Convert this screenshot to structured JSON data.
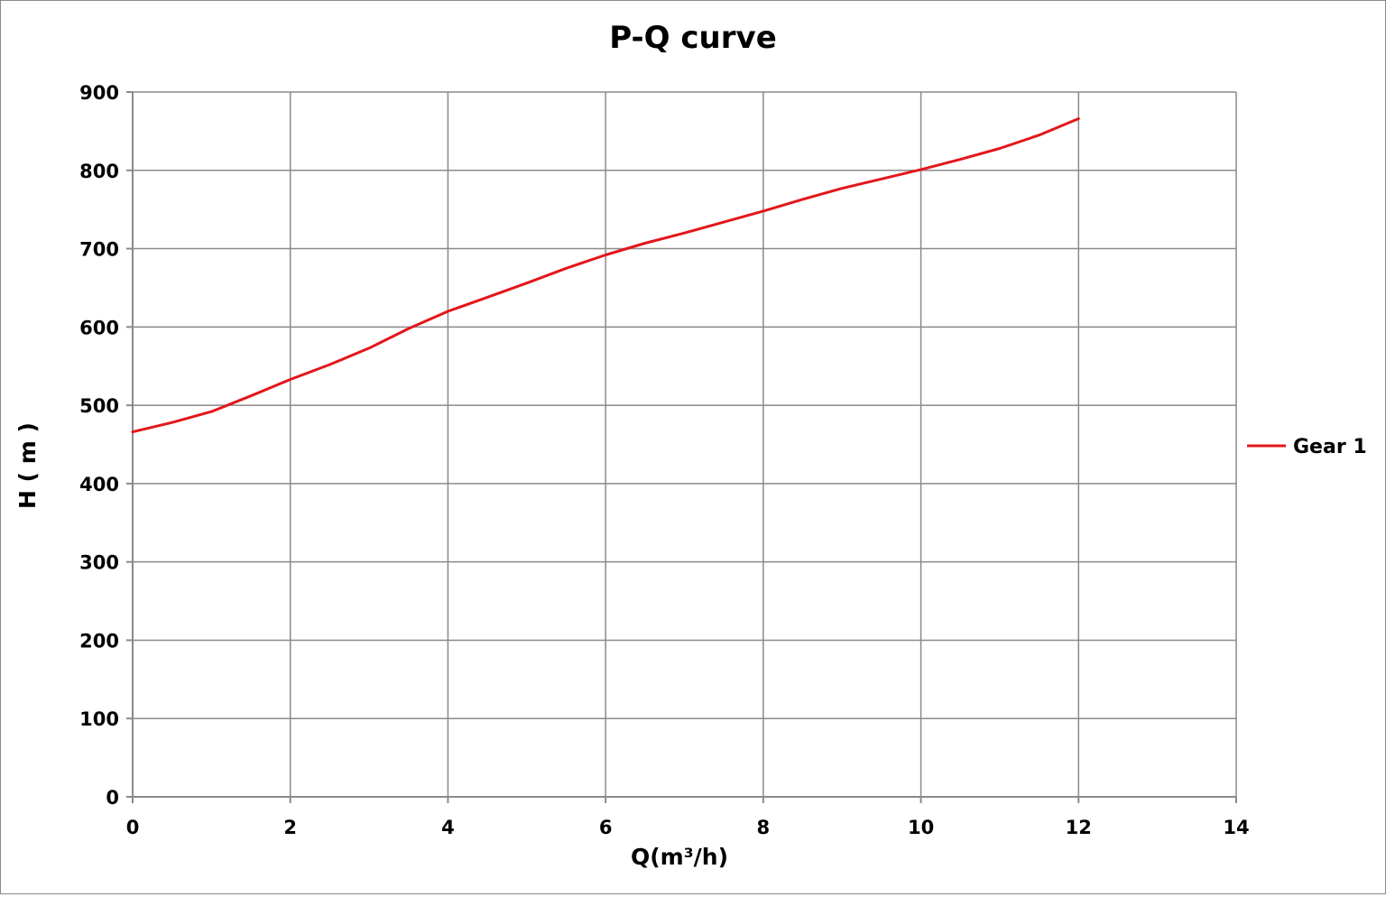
{
  "chart_data": {
    "type": "line",
    "title": "P-Q  curve",
    "xlabel": "Q(m³/h)",
    "ylabel": "H ( m )",
    "xlim": [
      0,
      14
    ],
    "ylim": [
      0,
      900
    ],
    "xticks": [
      0,
      2,
      4,
      6,
      8,
      10,
      12,
      14
    ],
    "yticks": [
      0,
      100,
      200,
      300,
      400,
      500,
      600,
      700,
      800,
      900
    ],
    "grid": true,
    "legend_position": "right",
    "series": [
      {
        "name": "Gear 1",
        "color": "#e3161b",
        "x": [
          0,
          0.5,
          1,
          1.5,
          2,
          2.5,
          3,
          3.5,
          4,
          4.5,
          5,
          5.5,
          6,
          6.5,
          7,
          7.5,
          8,
          8.5,
          9,
          9.5,
          10,
          10.5,
          11,
          11.5,
          12
        ],
        "y": [
          466,
          478,
          492,
          512,
          533,
          552,
          573,
          598,
          620,
          638,
          656,
          675,
          692,
          707,
          720,
          734,
          748,
          763,
          777,
          789,
          801,
          814,
          828,
          845,
          866
        ]
      }
    ]
  }
}
